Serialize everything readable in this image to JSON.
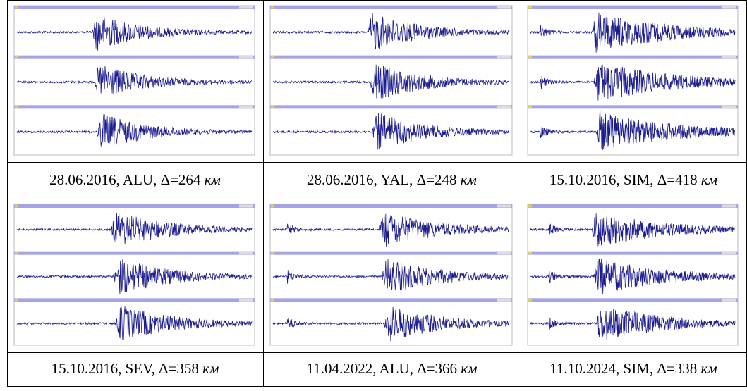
{
  "captions": [
    {
      "label": "28.06.2016, ALU, Δ=264",
      "unit": "км"
    },
    {
      "label": "28.06.2016, YAL, Δ=248",
      "unit": "км"
    },
    {
      "label": "15.10.2016, SIM, Δ=418",
      "unit": "км"
    },
    {
      "label": "15.10.2016, SEV, Δ=358",
      "unit": "км"
    },
    {
      "label": "11.04.2022, ALU, Δ=366",
      "unit": "км"
    },
    {
      "label": "11.10.2024, SIM, Δ=338",
      "unit": "км"
    }
  ]
}
